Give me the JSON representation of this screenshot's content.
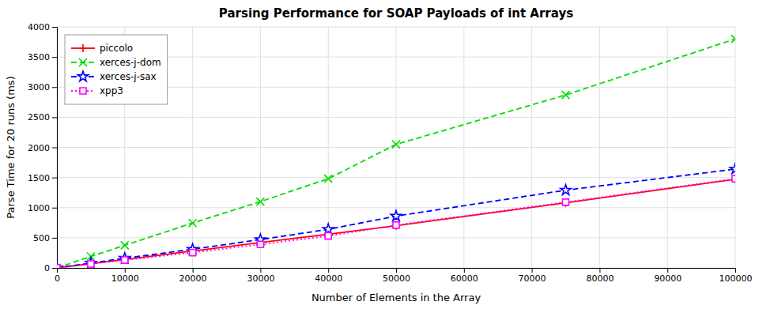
{
  "chart_data": {
    "type": "line",
    "title": "Parsing Performance for SOAP Payloads of int Arrays",
    "xlabel": "Number of Elements in the Array",
    "ylabel": "Parse Time for 20 runs (ms)",
    "x": [
      0,
      5000,
      10000,
      20000,
      30000,
      40000,
      50000,
      75000,
      100000
    ],
    "series": [
      {
        "name": "piccolo",
        "color": "#ff0000",
        "marker": "plus",
        "line_style": "solid",
        "values": [
          0,
          70,
          140,
          280,
          420,
          560,
          700,
          1080,
          1470
        ]
      },
      {
        "name": "xerces-j-dom",
        "color": "#00dd00",
        "marker": "x",
        "line_style": "dashed",
        "values": [
          0,
          190,
          375,
          745,
          1100,
          1480,
          2050,
          2870,
          3800
        ]
      },
      {
        "name": "xerces-j-sax",
        "color": "#0000ff",
        "marker": "star",
        "line_style": "dashed",
        "values": [
          0,
          80,
          160,
          310,
          470,
          640,
          860,
          1290,
          1640
        ]
      },
      {
        "name": "xpp3",
        "color": "#ff00ff",
        "marker": "square",
        "line_style": "dotted",
        "values": [
          0,
          65,
          130,
          255,
          390,
          530,
          710,
          1090,
          1480
        ]
      }
    ],
    "xlim": [
      0,
      100000
    ],
    "ylim": [
      0,
      4000
    ],
    "xticks": [
      0,
      10000,
      20000,
      30000,
      40000,
      50000,
      60000,
      70000,
      80000,
      90000,
      100000
    ],
    "yticks": [
      0,
      500,
      1000,
      1500,
      2000,
      2500,
      3000,
      3500,
      4000
    ],
    "grid": true,
    "legend": "upper left"
  }
}
